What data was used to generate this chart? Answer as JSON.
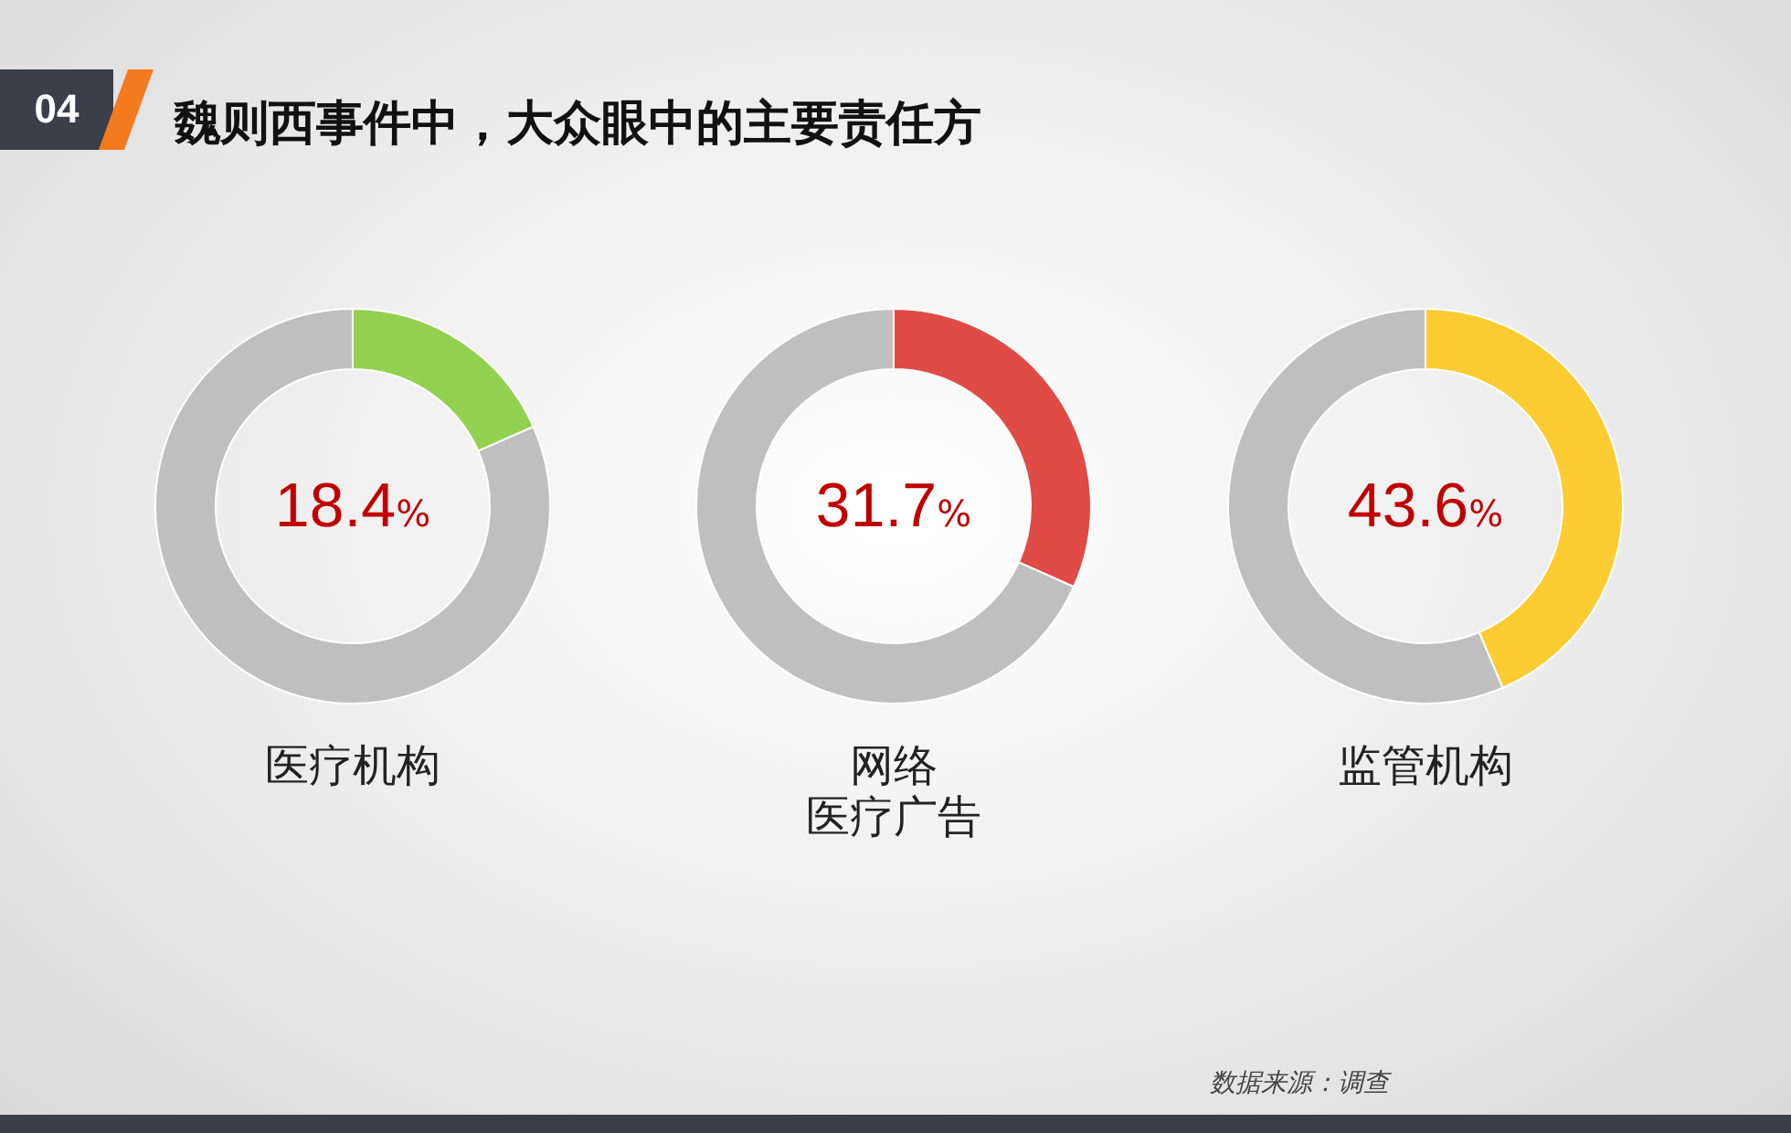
{
  "chart_data": [
    {
      "type": "donut",
      "title": "医疗机构",
      "annotations": [
        "04",
        "魏则西事件中，大众眼中的主要责任方"
      ],
      "categories": [
        null,
        null
      ],
      "values": [
        18.4,
        81.6
      ],
      "colors": [
        "#92d050",
        "#bfbfbf"
      ],
      "value_labels": [
        "18.4%",
        null
      ]
    },
    {
      "type": "donut",
      "title": "网络",
      "subtitle": "医疗广告",
      "categories": [
        null,
        null
      ],
      "values": [
        31.7,
        68.3
      ],
      "colors": [
        "#e04b45",
        "#bfbfbf"
      ],
      "value_labels": [
        "31.7%",
        null
      ]
    },
    {
      "type": "donut",
      "title": "监管机构",
      "annotations": [
        "数据来源：调查"
      ],
      "categories": [
        null,
        null
      ],
      "values": [
        43.6,
        56.4
      ],
      "colors": [
        "#fdcb32",
        "#bfbfbf"
      ],
      "value_labels": [
        "43.6%",
        null
      ]
    }
  ]
}
